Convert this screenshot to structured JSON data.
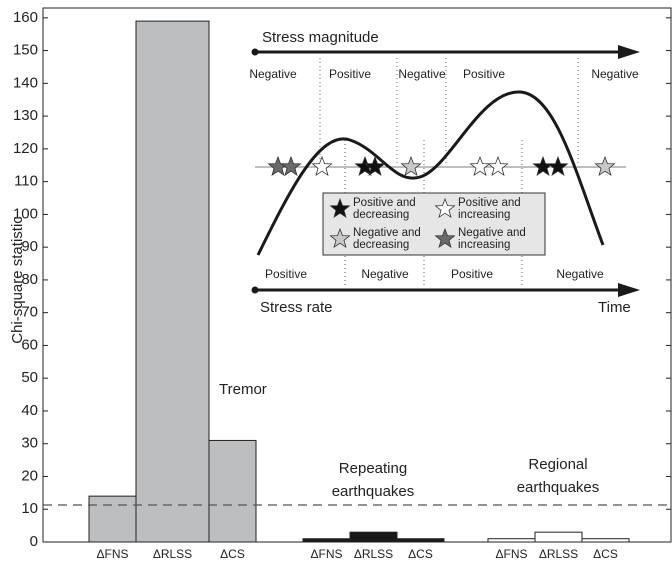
{
  "chart_data": {
    "type": "bar",
    "y_label": "Chi-square statistic",
    "ylim": [
      0,
      163
    ],
    "yticks": [
      0,
      10,
      20,
      30,
      40,
      50,
      60,
      70,
      80,
      90,
      100,
      110,
      120,
      130,
      140,
      150,
      160
    ],
    "threshold": 11.3,
    "groups": [
      {
        "name_lines": [
          "Tremor"
        ],
        "color": "#bcbec0",
        "categories": [
          "ΔFNS",
          "ΔRLSS",
          "ΔCS"
        ],
        "values": [
          14,
          159,
          31
        ]
      },
      {
        "name_lines": [
          "Repeating",
          "earthquakes"
        ],
        "color": "#1a1a1a",
        "categories": [
          "ΔFNS",
          "ΔRLSS",
          "ΔCS"
        ],
        "values": [
          1,
          3,
          1
        ]
      },
      {
        "name_lines": [
          "Regional",
          "earthquakes"
        ],
        "color": "#ffffff",
        "categories": [
          "ΔFNS",
          "ΔRLSS",
          "ΔCS"
        ],
        "values": [
          1,
          3,
          1
        ]
      }
    ]
  },
  "inset": {
    "top_arrow": "Stress magnitude",
    "top_labels": [
      "Negative",
      "Positive",
      "Negative",
      "Positive",
      "Negative"
    ],
    "bottom_labels": [
      "Positive",
      "Negative",
      "Positive",
      "Negative"
    ],
    "bottom_arrow": "Stress rate",
    "time": "Time",
    "legend": [
      {
        "lines": [
          "Positive and",
          "decreasing"
        ]
      },
      {
        "lines": [
          "Positive and",
          "increasing"
        ]
      },
      {
        "lines": [
          "Negative and",
          "decreasing"
        ]
      },
      {
        "lines": [
          "Negative and",
          "increasing"
        ]
      }
    ]
  }
}
